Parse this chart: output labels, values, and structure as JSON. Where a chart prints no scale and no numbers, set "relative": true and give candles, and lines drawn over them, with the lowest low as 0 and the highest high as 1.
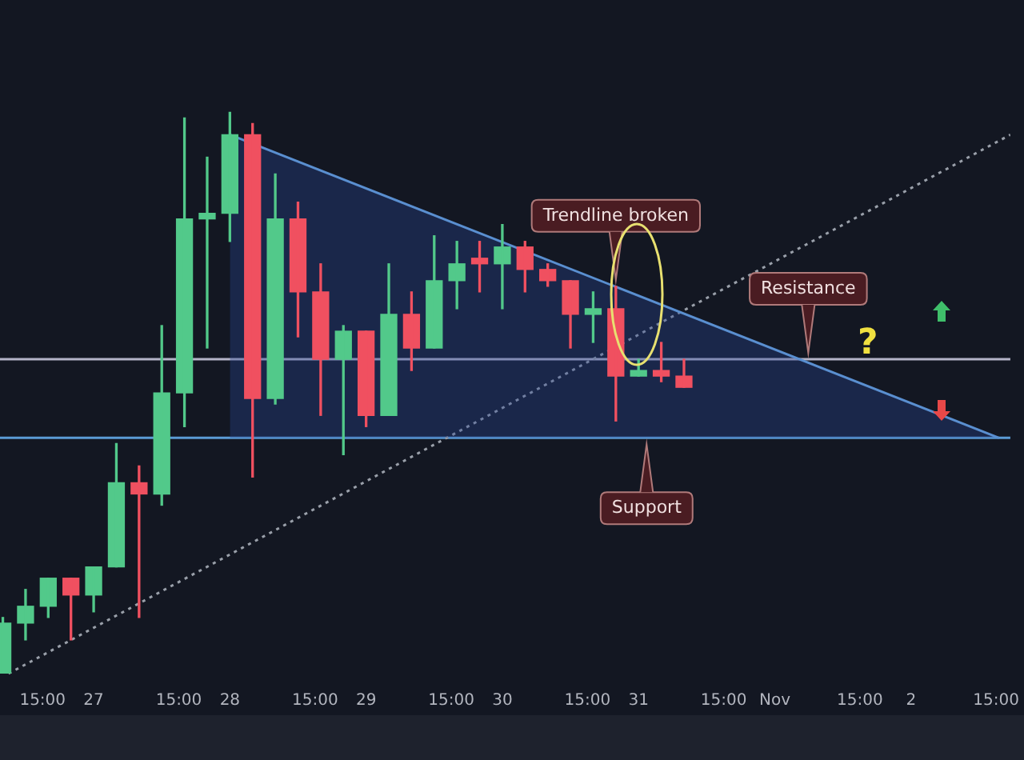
{
  "chart_data": {
    "type": "candlestick",
    "relative": true,
    "grid": false,
    "legend": false,
    "x": [
      "--10-26T08:00",
      "--10-26T12:00",
      "--10-26T16:00",
      "--10-26T20:00",
      "--10-27T00:00",
      "--10-27T04:00",
      "--10-27T08:00",
      "--10-27T12:00",
      "--10-27T16:00",
      "--10-27T20:00",
      "--10-28T00:00",
      "--10-28T04:00",
      "--10-28T08:00",
      "--10-28T12:00",
      "--10-28T16:00",
      "--10-28T20:00",
      "--10-29T00:00",
      "--10-29T04:00",
      "--10-29T08:00",
      "--10-29T12:00",
      "--10-29T16:00",
      "--10-29T20:00",
      "--10-30T00:00",
      "--10-30T04:00",
      "--10-30T08:00",
      "--10-30T12:00",
      "--10-30T16:00",
      "--10-30T20:00",
      "--10-31T00:00",
      "--10-31T04:00",
      "--10-31T08:00"
    ],
    "ohlc": [
      [
        0,
        0.1,
        0,
        0.09
      ],
      [
        0.09,
        0.15,
        0.06,
        0.12
      ],
      [
        0.12,
        0.17,
        0.1,
        0.17
      ],
      [
        0.17,
        0.17,
        0.06,
        0.14
      ],
      [
        0.14,
        0.19,
        0.11,
        0.19
      ],
      [
        0.19,
        0.41,
        0.19,
        0.34
      ],
      [
        0.34,
        0.37,
        0.1,
        0.32
      ],
      [
        0.32,
        0.62,
        0.3,
        0.5
      ],
      [
        0.5,
        0.99,
        0.44,
        0.81
      ],
      [
        0.81,
        0.92,
        0.58,
        0.82
      ],
      [
        0.82,
        1,
        0.77,
        0.96
      ],
      [
        0.96,
        0.98,
        0.35,
        0.49
      ],
      [
        0.49,
        0.89,
        0.48,
        0.81
      ],
      [
        0.81,
        0.84,
        0.6,
        0.68
      ],
      [
        0.68,
        0.73,
        0.46,
        0.56
      ],
      [
        0.56,
        0.62,
        0.39,
        0.61
      ],
      [
        0.61,
        0.61,
        0.44,
        0.46
      ],
      [
        0.46,
        0.73,
        0.46,
        0.64
      ],
      [
        0.64,
        0.68,
        0.54,
        0.58
      ],
      [
        0.58,
        0.78,
        0.58,
        0.7
      ],
      [
        0.7,
        0.77,
        0.65,
        0.73
      ],
      [
        0.74,
        0.77,
        0.68,
        0.73
      ],
      [
        0.73,
        0.8,
        0.65,
        0.76
      ],
      [
        0.76,
        0.77,
        0.68,
        0.72
      ],
      [
        0.72,
        0.73,
        0.69,
        0.7
      ],
      [
        0.7,
        0.7,
        0.58,
        0.64
      ],
      [
        0.64,
        0.68,
        0.59,
        0.65
      ],
      [
        0.65,
        0.69,
        0.45,
        0.53
      ],
      [
        0.53,
        0.56,
        0.53,
        0.54
      ],
      [
        0.54,
        0.59,
        0.52,
        0.53
      ],
      [
        0.53,
        0.56,
        0.51,
        0.51
      ]
    ],
    "colors": [
      "#52c98a",
      "#52c98a",
      "#52c98a",
      "#f05060",
      "#52c98a",
      "#52c98a",
      "#f05060",
      "#52c98a",
      "#52c98a",
      "#52c98a",
      "#52c98a",
      "#f05060",
      "#52c98a",
      "#f05060",
      "#f05060",
      "#52c98a",
      "#f05060",
      "#52c98a",
      "#f05060",
      "#52c98a",
      "#52c98a",
      "#f05060",
      "#52c98a",
      "#f05060",
      "#f05060",
      "#f05060",
      "#52c98a",
      "#f05060",
      "#52c98a",
      "#f05060",
      "#f05060"
    ],
    "xlim": [
      "--10-26T07:30",
      "--11-02T17:30"
    ],
    "xticks": [
      {
        "value": "--10-26T15:00",
        "label": "15:00"
      },
      {
        "value": "--10-27",
        "label": "27"
      },
      {
        "value": "--10-27T15:00",
        "label": "15:00"
      },
      {
        "value": "--10-28",
        "label": "28"
      },
      {
        "value": "--10-28T15:00",
        "label": "15:00"
      },
      {
        "value": "--10-29",
        "label": "29"
      },
      {
        "value": "--10-29T15:00",
        "label": "15:00"
      },
      {
        "value": "--10-30",
        "label": "30"
      },
      {
        "value": "--10-30T15:00",
        "label": "15:00"
      },
      {
        "value": "--10-31",
        "label": "31"
      },
      {
        "value": "--10-31T15:00",
        "label": "15:00"
      },
      {
        "value": "--11-01",
        "label": "Nov"
      },
      {
        "value": "--11-01T15:00",
        "label": "15:00"
      },
      {
        "value": "--11-02",
        "label": "2"
      },
      {
        "value": "--11-02T15:00",
        "label": "15:00"
      }
    ],
    "series": [
      {
        "type": "line",
        "x": [
          "--10-28T00:00",
          "--11-02T15:30"
        ],
        "values": [
          0.96,
          0.42
        ],
        "color": "#5a8fd0",
        "line_style": "solid",
        "marker": "none"
      },
      {
        "type": "line",
        "x": [
          "--10-26T09:00",
          "--11-02T17:30"
        ],
        "values": [
          0,
          0.96
        ],
        "color": "#9aa0aa",
        "line_style": "dotted",
        "marker": "none"
      }
    ],
    "ref_lines": [
      {
        "axis": "y",
        "value": 0.42,
        "label": "Support",
        "color": "#5b9bd5"
      },
      {
        "axis": "y",
        "value": 0.56,
        "label": "Resistance",
        "color": "#b4b4c8"
      }
    ],
    "annotations": [
      {
        "text": "Trendline broken",
        "x": "--10-30T20:00",
        "y": 0.69
      },
      "?"
    ]
  }
}
